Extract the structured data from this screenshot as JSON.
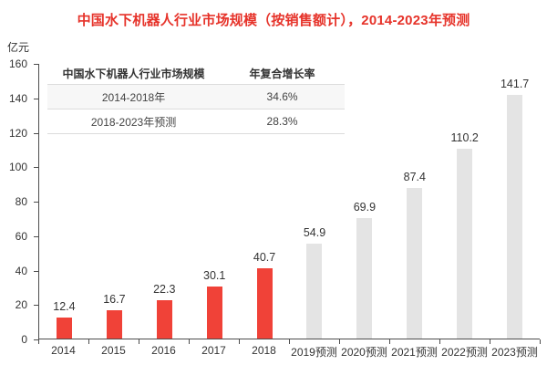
{
  "title": "中国水下机器人行业市场规模（按销售售额计），2014-2023年预测",
  "title_text": "中国水下机器人行业市场规模（按销售额计），2014-2023年预测",
  "y_axis": {
    "unit_label": "亿元",
    "tick_labels": [
      "0",
      "20",
      "40",
      "60",
      "80",
      "100",
      "120",
      "140",
      "160"
    ]
  },
  "inset_table": {
    "headers": [
      "中国水下机器人行业市场规模",
      "年复合增长率"
    ],
    "rows": [
      [
        "2014-2018年",
        "34.6%"
      ],
      [
        "2018-2023年预测",
        "28.3%"
      ]
    ]
  },
  "chart_data": {
    "type": "bar",
    "title": "中国水下机器人行业市场规模（按销售额计），2014-2023年预测",
    "categories": [
      "2014",
      "2015",
      "2016",
      "2017",
      "2018",
      "2019预测",
      "2020预测",
      "2021预测",
      "2022预测",
      "2023预测"
    ],
    "values": [
      12.4,
      16.7,
      22.3,
      30.1,
      40.7,
      54.9,
      69.9,
      87.4,
      110.2,
      141.7
    ],
    "value_labels": [
      "12.4",
      "16.7",
      "22.3",
      "30.1",
      "40.7",
      "54.9",
      "69.9",
      "87.4",
      "110.2",
      "141.7"
    ],
    "series_note": "2014-2018 actual (red), 2019-2023 forecast (gray)",
    "forecast_from_index": 5,
    "xlabel": "",
    "ylabel": "亿元",
    "ylim": [
      0,
      160
    ],
    "ytick_step": 20,
    "grid": false,
    "legend_position": "none"
  },
  "colors": {
    "title": "#e6332a",
    "bar_actual": "#f04238",
    "bar_forecast": "#e4e4e4",
    "axis": "#4d4d4d",
    "text": "#333333",
    "table_divider": "#dcdcdc",
    "table_row_alt_bg": "#f7f7f7"
  }
}
